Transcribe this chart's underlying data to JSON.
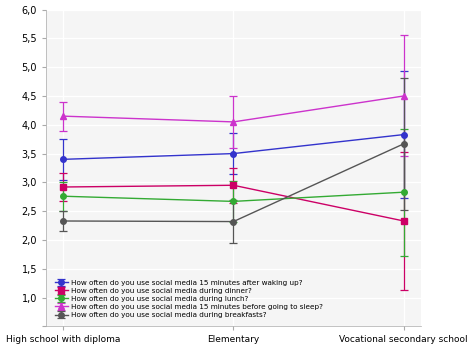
{
  "x_labels": [
    "High school with diploma",
    "Elementary",
    "Vocational secondary school"
  ],
  "x_positions": [
    0,
    1,
    2
  ],
  "series": [
    {
      "label": "How often do you use social media 15 minutes after waking up?",
      "color": "#3333cc",
      "marker": "o",
      "y": [
        3.4,
        3.5,
        3.83
      ],
      "yerr_low": [
        0.35,
        0.35,
        1.1
      ],
      "yerr_high": [
        0.35,
        0.35,
        1.1
      ]
    },
    {
      "label": "How often do you use social media during dinner?",
      "color": "#cc0066",
      "marker": "s",
      "y": [
        2.92,
        2.95,
        2.33
      ],
      "yerr_low": [
        0.25,
        0.3,
        1.2
      ],
      "yerr_high": [
        0.25,
        0.3,
        1.2
      ]
    },
    {
      "label": "How often do you use social media during lunch?",
      "color": "#33aa33",
      "marker": "o",
      "y": [
        2.76,
        2.67,
        2.83
      ],
      "yerr_low": [
        0.25,
        0.35,
        1.1
      ],
      "yerr_high": [
        0.25,
        0.35,
        1.1
      ]
    },
    {
      "label": "How often do you use social media 15 minutes before going to sleep?",
      "color": "#cc33cc",
      "marker": "^",
      "y": [
        4.15,
        4.05,
        4.5
      ],
      "yerr_low": [
        0.25,
        0.45,
        1.05
      ],
      "yerr_high": [
        0.25,
        0.45,
        1.05
      ]
    },
    {
      "label": "How often do you use social media during breakfasts?",
      "color": "#555555",
      "marker": "o",
      "y": [
        2.33,
        2.32,
        3.67
      ],
      "yerr_low": [
        0.18,
        0.38,
        1.15
      ],
      "yerr_high": [
        0.18,
        0.38,
        1.15
      ]
    }
  ],
  "ylim": [
    0.5,
    6.0
  ],
  "yticks": [
    0.5,
    1.0,
    1.5,
    2.0,
    2.5,
    3.0,
    3.5,
    4.0,
    4.5,
    5.0,
    5.5,
    6.0
  ],
  "ytick_labels": [
    " ",
    "1,0",
    "1,5",
    "2,0",
    "2,5",
    "3,0",
    "3,5",
    "4,0",
    "4,5",
    "5,0",
    "5,5",
    "6,0"
  ],
  "plot_bg": "#f5f5f5",
  "fig_bg": "#ffffff",
  "grid_color": "#ffffff",
  "legend_fontsize": 5.2,
  "axis_fontsize": 6.5,
  "tick_fontsize": 7.0
}
